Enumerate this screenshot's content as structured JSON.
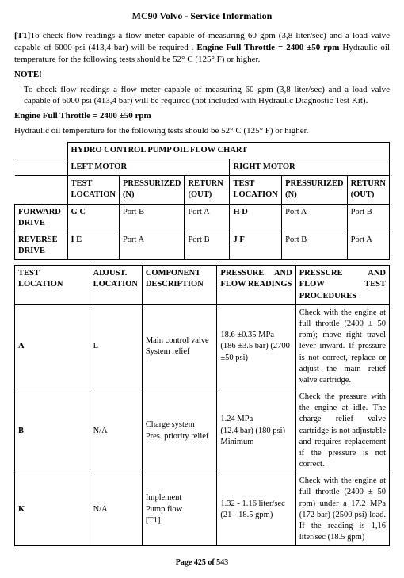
{
  "title": "MC90 Volvo - Service Information",
  "intro": {
    "tag": "[T1]",
    "body": "To check flow readings a flow meter capable of measuring 60 gpm (3,8 liter/sec) and a load valve capable of 6000 psi (413,4 bar) will be required . ",
    "engine_label": "Engine Full Throttle = 2400 ±50 rpm",
    "hydraulic": " Hydraulic oil temperature for the following tests should be 52° C (125° F) or higher."
  },
  "note_label": "NOTE!",
  "note_body": "To check flow readings a flow meter capable of measuring 60 gpm (3,8 liter/sec) and a load valve capable of 6000 psi (413,4 bar) will be required (not included with Hydraulic Diagnostic Test Kit).",
  "engine_line": "Engine Full Throttle = 2400 ±50 rpm",
  "hyd_line": "Hydraulic oil temperature for the following tests should be 52° C (125° F) or higher.",
  "table1": {
    "chart_title": "HYDRO CONTROL PUMP OIL FLOW CHART",
    "left": "LEFT MOTOR",
    "right": "RIGHT MOTOR",
    "cols": {
      "test_location": "TEST LOCATION",
      "pressurized": "PRESSURIZED",
      "n": "(N)",
      "return": "RETURN",
      "out": "(OUT)"
    },
    "rows": [
      {
        "label": "FORWARD DRIVE",
        "c1": "G C",
        "c2": "Port B",
        "c3": "Port A",
        "c4": "H D",
        "c5": "Port A",
        "c6": "Port B"
      },
      {
        "label": "REVERSE DRIVE",
        "c1": "I E",
        "c2": "Port A",
        "c3": "Port B",
        "c4": "J F",
        "c5": "Port B",
        "c6": "Port A"
      }
    ],
    "widths": [
      "16%",
      "9%",
      "14%",
      "14%",
      "14%",
      "14%",
      "10%"
    ]
  },
  "table2": {
    "headers": {
      "test_location": "TEST LOCATION",
      "adjust": "ADJUST. LOCATION",
      "component": "COMPONENT DESCRIPTION",
      "pressure_flow": "PRESSURE AND FLOW READINGS",
      "procedures": "PRESSURE AND FLOW TEST PROCEDURES"
    },
    "rows": [
      {
        "loc": "A",
        "adjust": "L",
        "component": "Main control valve System relief",
        "pressure": "18.6 ±0.35 MPa\n(186 ±3.5 bar) (2700 ±50 psi)",
        "procedure": "Check with the engine at full throttle (2400 ± 50 rpm); move right travel lever inward. If pressure is not correct, replace or adjust the main relief valve cartridge."
      },
      {
        "loc": "B",
        "adjust": "N/A",
        "component": "Charge system\nPres. priority relief",
        "pressure": "1.24 MPa\n(12.4 bar) (180 psi) Minimum",
        "procedure": "Check the pressure with the engine at idle. The charge relief valve cartridge is not adjustable and requires replacement if the pressure is not correct."
      },
      {
        "loc": "K",
        "adjust": "N/A",
        "component": "Implement\nPump flow\n[T1]",
        "pressure": "1.32 - 1.16 liter/sec\n(21 - 18.5 gpm)",
        "procedure": "Check with the engine at full throttle (2400 ± 50 rpm) under a 17.2 MPa (172 bar) (2500 psi) load. If the reading is 1,16 liter/sec (18.5 gpm)"
      }
    ],
    "widths": [
      "20%",
      "14%",
      "20%",
      "21%",
      "25%"
    ]
  },
  "footer": "Page 425 of 543"
}
